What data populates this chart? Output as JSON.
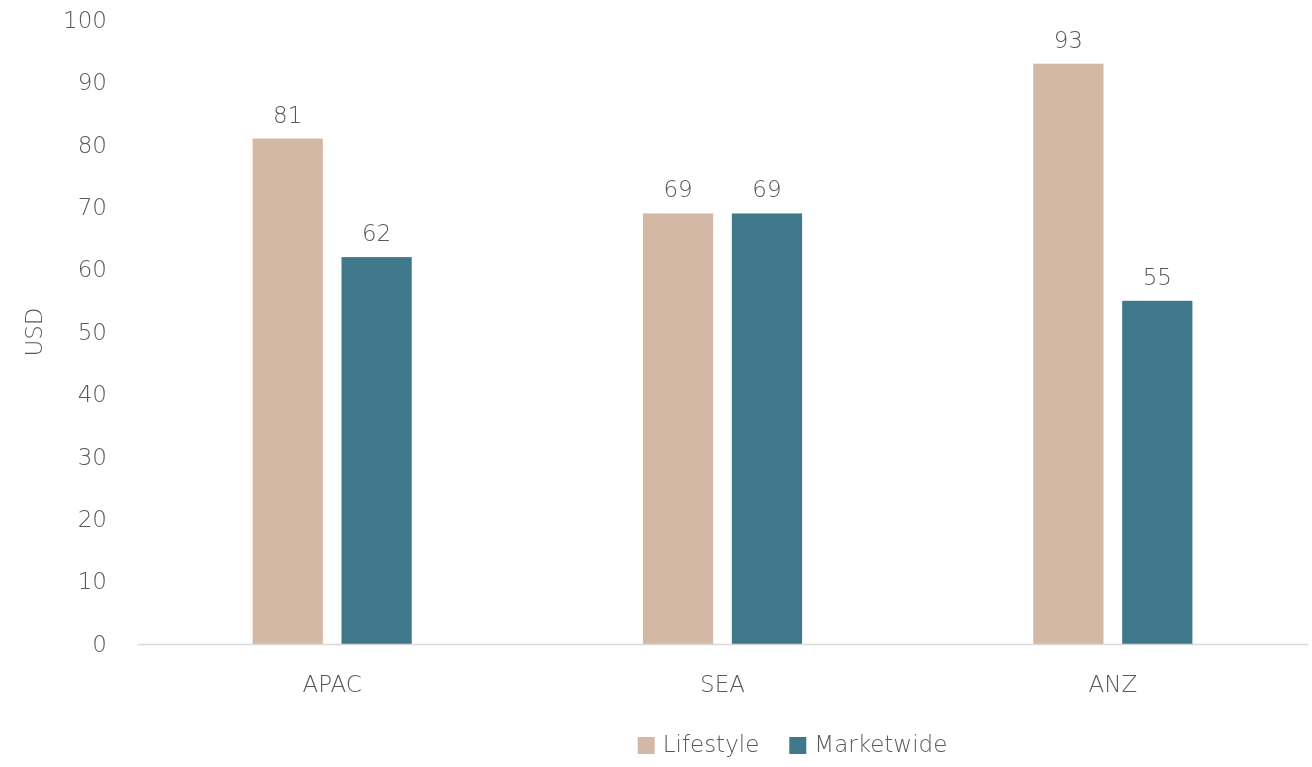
{
  "chart_data": {
    "type": "bar",
    "ylabel": "USD",
    "categories": [
      "APAC",
      "SEA",
      "ANZ"
    ],
    "series": [
      {
        "name": "Lifestyle",
        "color": "#d2b8a5",
        "values": [
          81,
          69,
          93
        ]
      },
      {
        "name": "Marketwide",
        "color": "#3f788b",
        "values": [
          62,
          69,
          55
        ]
      }
    ],
    "ylim": [
      0,
      100
    ],
    "yticks": [
      0,
      10,
      20,
      30,
      40,
      50,
      60,
      70,
      80,
      90,
      100
    ],
    "grid": false,
    "legend": "bottom",
    "data_labels": true
  }
}
